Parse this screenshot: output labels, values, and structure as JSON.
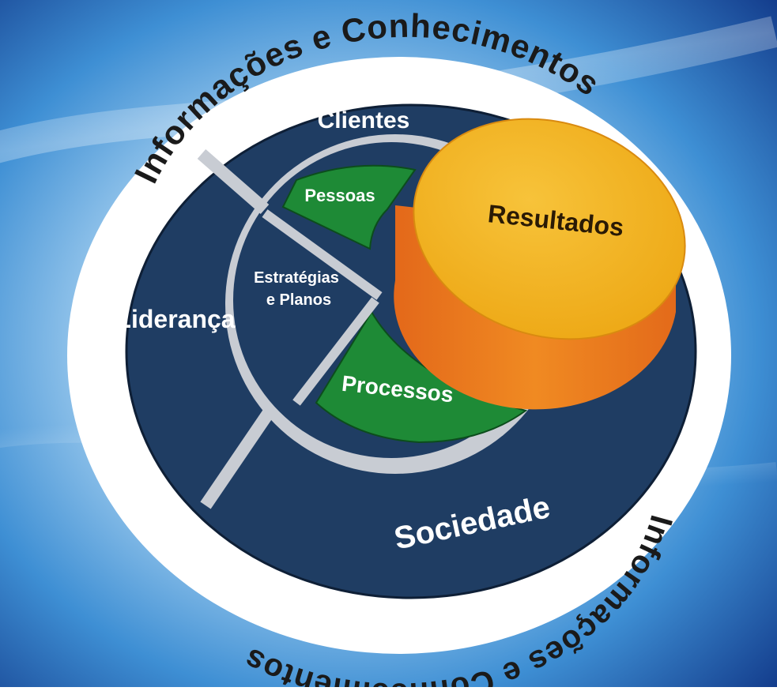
{
  "diagram": {
    "ring_text_top": "Informações e Conhecimentos",
    "ring_text_bottom": "Informações e Conhecimentos",
    "segments": {
      "clientes": "Clientes",
      "pessoas": "Pessoas",
      "estrategias_line1": "Estratégias",
      "estrategias_line2": "e Planos",
      "lideranca": "Liderança",
      "processos": "Processos",
      "sociedade": "Sociedade",
      "resultados": "Resultados"
    }
  },
  "colors": {
    "navy": "#1f3d63",
    "green": "#1e8a36",
    "orange_top": "#f2b01a",
    "orange_side": "#e8781f",
    "ring": "#ffffff",
    "text_dark": "#1a1a1a"
  }
}
